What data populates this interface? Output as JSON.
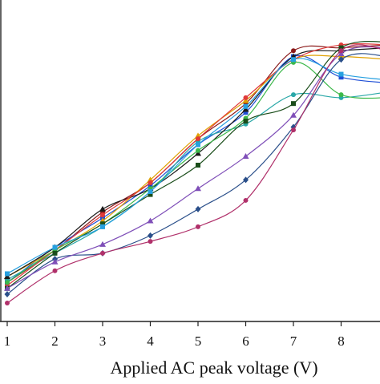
{
  "chart_data": {
    "type": "line",
    "xlabel": "Applied AC peak voltage (V)",
    "ylabel": "",
    "title": "",
    "x": [
      1,
      2,
      3,
      4,
      5,
      6,
      7,
      8,
      9
    ],
    "xticks": [
      "1",
      "2",
      "3",
      "4",
      "5",
      "6",
      "7",
      "8"
    ],
    "xlim": [
      1,
      9
    ],
    "ylim": [
      0,
      1
    ],
    "yaxis_labels_visible": false,
    "grid": false,
    "legend": "none",
    "series": [
      {
        "color": "#8b1a1a",
        "marker": "circle",
        "values": [
          0.13,
          0.24,
          0.37,
          0.47,
          0.62,
          0.74,
          0.92,
          0.93,
          0.94
        ]
      },
      {
        "color": "#1f4fd6",
        "marker": "square",
        "values": [
          0.13,
          0.25,
          0.35,
          0.46,
          0.6,
          0.71,
          0.9,
          0.83,
          0.81
        ]
      },
      {
        "color": "#e0a000",
        "marker": "triangle",
        "values": [
          0.15,
          0.24,
          0.34,
          0.48,
          0.63,
          0.75,
          0.89,
          0.9,
          0.89
        ]
      },
      {
        "color": "#2aa8a8",
        "marker": "circle",
        "values": [
          0.14,
          0.23,
          0.32,
          0.44,
          0.61,
          0.67,
          0.77,
          0.76,
          0.78
        ]
      },
      {
        "color": "#1a1a1a",
        "marker": "triangle",
        "values": [
          0.15,
          0.25,
          0.38,
          0.45,
          0.57,
          0.72,
          0.9,
          0.92,
          0.93
        ]
      },
      {
        "color": "#e03a3a",
        "marker": "circle",
        "values": [
          0.12,
          0.24,
          0.36,
          0.47,
          0.62,
          0.76,
          0.89,
          0.94,
          0.94
        ]
      },
      {
        "color": "#3cb84a",
        "marker": "circle",
        "values": [
          0.13,
          0.24,
          0.33,
          0.45,
          0.58,
          0.69,
          0.88,
          0.77,
          0.76
        ]
      },
      {
        "color": "#1a4d1a",
        "marker": "square",
        "values": [
          0.11,
          0.23,
          0.33,
          0.43,
          0.53,
          0.68,
          0.74,
          0.93,
          0.95
        ]
      },
      {
        "color": "#27a0e0",
        "marker": "square",
        "values": [
          0.16,
          0.25,
          0.32,
          0.44,
          0.6,
          0.73,
          0.89,
          0.84,
          0.82
        ]
      },
      {
        "color": "#2a4f8a",
        "marker": "diamond",
        "values": [
          0.09,
          0.21,
          0.23,
          0.29,
          0.38,
          0.48,
          0.66,
          0.89,
          0.9
        ]
      },
      {
        "color": "#7f4fb8",
        "marker": "triangle",
        "values": [
          0.11,
          0.2,
          0.26,
          0.34,
          0.45,
          0.56,
          0.7,
          0.91,
          0.93
        ]
      },
      {
        "color": "#b0306a",
        "marker": "circle",
        "values": [
          0.06,
          0.17,
          0.23,
          0.27,
          0.32,
          0.41,
          0.65,
          0.92,
          0.92
        ]
      }
    ]
  }
}
